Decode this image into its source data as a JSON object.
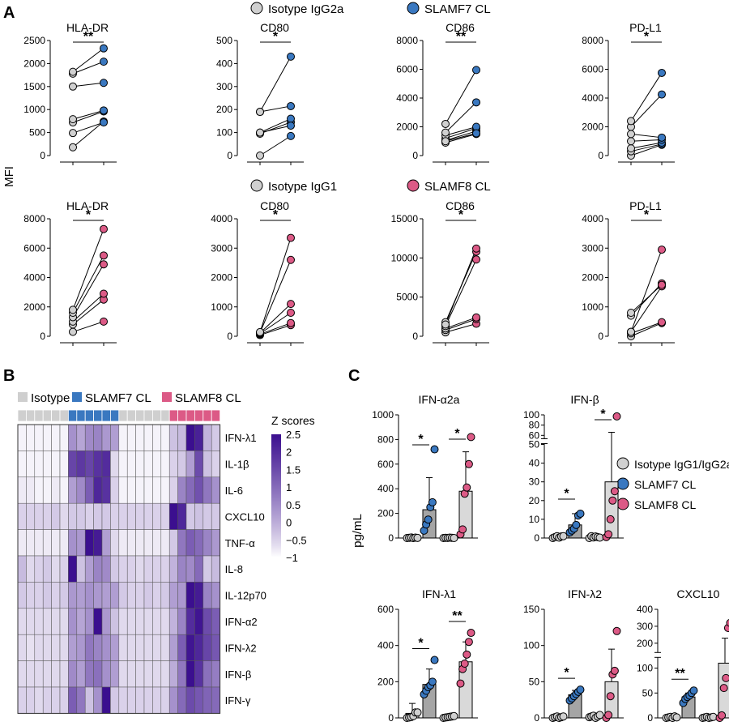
{
  "figure": {
    "panels": [
      {
        "letter": "A"
      },
      {
        "letter": "B"
      },
      {
        "letter": "C"
      }
    ],
    "colors": {
      "isotype": "#d0d0d0",
      "slamf7": "#3a78c0",
      "slamf8": "#dc5a86",
      "bar_slamf7": "#a5a5a5",
      "bar_isotype_slamf8": "#d9d9d9",
      "heat_high": "#3b0f8f"
    }
  },
  "panel_a": {
    "ylabel": "MFI",
    "legend_top": [
      {
        "label": "Isotype IgG2a",
        "color": "#d0d0d0"
      },
      {
        "label": "SLAMF7 CL",
        "color": "#3a78c0"
      }
    ],
    "legend_bottom": [
      {
        "label": "Isotype IgG1",
        "color": "#d0d0d0"
      },
      {
        "label": "SLAMF8 CL",
        "color": "#dc5a86"
      }
    ]
  },
  "panel_b": {
    "legend": [
      {
        "label": "Isotype",
        "color": "#cfcfcf"
      },
      {
        "label": "SLAMF7 CL",
        "color": "#3a78c0"
      },
      {
        "label": "SLAMF8 CL",
        "color": "#dc5a86"
      }
    ],
    "colorbar_title": "Z scores"
  },
  "panel_c": {
    "ylabel": "pg/mL",
    "legend": [
      {
        "label": "Isotype IgG1/IgG2a",
        "color": "#d0d0d0"
      },
      {
        "label": "SLAMF7 CL",
        "color": "#3a78c0"
      },
      {
        "label": "SLAMF8 CL",
        "color": "#dc5a86"
      }
    ]
  },
  "chart_data": [
    {
      "id": "a1",
      "type": "scatter",
      "subtype": "paired",
      "title": "HLA-DR",
      "significance": "**",
      "ylim": [
        0,
        2500
      ],
      "yticks": [
        0,
        500,
        1000,
        1500,
        2000,
        2500
      ],
      "pair_labels": [
        "Isotype IgG2a",
        "SLAMF7 CL"
      ],
      "pairs": [
        [
          180,
          740
        ],
        [
          490,
          720
        ],
        [
          720,
          960
        ],
        [
          790,
          980
        ],
        [
          1500,
          1580
        ],
        [
          1780,
          2040
        ],
        [
          1820,
          2330
        ]
      ]
    },
    {
      "id": "a2",
      "type": "scatter",
      "subtype": "paired",
      "title": "CD80",
      "significance": "*",
      "ylim": [
        0,
        500
      ],
      "yticks": [
        0,
        100,
        200,
        300,
        400,
        500
      ],
      "pair_labels": [
        "Isotype IgG2a",
        "SLAMF7 CL"
      ],
      "pairs": [
        [
          0,
          85
        ],
        [
          95,
          145
        ],
        [
          100,
          160
        ],
        [
          100,
          130
        ],
        [
          190,
          215
        ],
        [
          190,
          430
        ]
      ]
    },
    {
      "id": "a3",
      "type": "scatter",
      "subtype": "paired",
      "title": "CD86",
      "significance": "**",
      "ylim": [
        0,
        8000
      ],
      "yticks": [
        0,
        2000,
        4000,
        6000,
        8000
      ],
      "pair_labels": [
        "Isotype IgG2a",
        "SLAMF7 CL"
      ],
      "pairs": [
        [
          900,
          1500
        ],
        [
          1050,
          1700
        ],
        [
          1200,
          1900
        ],
        [
          1400,
          2000
        ],
        [
          1600,
          3700
        ],
        [
          2200,
          5950
        ],
        [
          1000,
          1550
        ]
      ]
    },
    {
      "id": "a4",
      "type": "scatter",
      "subtype": "paired",
      "title": "PD-L1",
      "significance": "*",
      "ylim": [
        0,
        8000
      ],
      "yticks": [
        0,
        2000,
        4000,
        6000,
        8000
      ],
      "pair_labels": [
        "Isotype IgG2a",
        "SLAMF7 CL"
      ],
      "pairs": [
        [
          0,
          750
        ],
        [
          300,
          800
        ],
        [
          500,
          900
        ],
        [
          1000,
          1100
        ],
        [
          1500,
          1250
        ],
        [
          2000,
          4250
        ],
        [
          2400,
          5750
        ]
      ]
    },
    {
      "id": "a5",
      "type": "scatter",
      "subtype": "paired",
      "title": "HLA-DR",
      "significance": "*",
      "ylim": [
        0,
        8000
      ],
      "yticks": [
        0,
        2000,
        4000,
        6000,
        8000
      ],
      "pair_labels": [
        "Isotype IgG1",
        "SLAMF8 CL"
      ],
      "pairs": [
        [
          300,
          1000
        ],
        [
          800,
          2500
        ],
        [
          1000,
          2900
        ],
        [
          1300,
          4900
        ],
        [
          1600,
          5500
        ],
        [
          1800,
          7300
        ]
      ]
    },
    {
      "id": "a6",
      "type": "scatter",
      "subtype": "paired",
      "title": "CD80",
      "significance": "*",
      "ylim": [
        0,
        4000
      ],
      "yticks": [
        0,
        1000,
        2000,
        3000,
        4000
      ],
      "pair_labels": [
        "Isotype IgG1",
        "SLAMF8 CL"
      ],
      "pairs": [
        [
          40,
          380
        ],
        [
          70,
          450
        ],
        [
          90,
          800
        ],
        [
          110,
          1100
        ],
        [
          120,
          2600
        ],
        [
          140,
          3350
        ]
      ]
    },
    {
      "id": "a7",
      "type": "scatter",
      "subtype": "paired",
      "title": "CD86",
      "significance": "*",
      "ylim": [
        0,
        15000
      ],
      "yticks": [
        0,
        5000,
        10000,
        15000
      ],
      "pair_labels": [
        "Isotype IgG1",
        "SLAMF8 CL"
      ],
      "pairs": [
        [
          500,
          1600
        ],
        [
          800,
          2200
        ],
        [
          1000,
          2400
        ],
        [
          1300,
          9800
        ],
        [
          1800,
          10800
        ],
        [
          1500,
          11200
        ]
      ]
    },
    {
      "id": "a8",
      "type": "scatter",
      "subtype": "paired",
      "title": "PD-L1",
      "significance": "*",
      "ylim": [
        0,
        4000
      ],
      "yticks": [
        0,
        1000,
        2000,
        3000,
        4000
      ],
      "pair_labels": [
        "Isotype IgG1",
        "SLAMF8 CL"
      ],
      "pairs": [
        [
          0,
          450
        ],
        [
          100,
          480
        ],
        [
          150,
          1700
        ],
        [
          700,
          1800
        ],
        [
          800,
          1750
        ],
        [
          150,
          2950
        ]
      ]
    },
    {
      "id": "heatmap",
      "type": "heatmap",
      "colorbar_label": "Z scores",
      "scale": [
        -1,
        2.5
      ],
      "scale_ticks": [
        2.5,
        2,
        1.5,
        1,
        0.5,
        0,
        -0.5,
        -1
      ],
      "scale_tick_labels": [
        "2.5",
        "2",
        "1.5",
        "1",
        "0.5",
        "0",
        "−0.5",
        "−1"
      ],
      "rows": [
        "IFN-λ1",
        "IL-1β",
        "IL-6",
        "CXCL10",
        "TNF-α",
        "IL-8",
        "IL-12p70",
        "IFN-α2",
        "IFN-λ2",
        "IFN-β",
        "IFN-γ"
      ],
      "column_groups": [
        {
          "label": "Isotype",
          "count": 6
        },
        {
          "label": "SLAMF7 CL",
          "count": 6
        },
        {
          "label": "Isotype",
          "count": 6
        },
        {
          "label": "SLAMF8 CL",
          "count": 6
        }
      ],
      "values": [
        [
          -0.9,
          -0.9,
          -0.9,
          -0.9,
          -0.9,
          -0.9,
          0.4,
          0.1,
          0.5,
          0.6,
          0.3,
          0.2,
          -0.9,
          -0.9,
          -0.9,
          -0.9,
          -0.9,
          -0.9,
          -0.3,
          -0.2,
          2.5,
          2.2,
          -0.1,
          -0.4
        ],
        [
          -0.9,
          -0.9,
          -0.9,
          -0.9,
          -0.9,
          -0.9,
          1.6,
          1.8,
          1.6,
          1.9,
          2.0,
          -0.6,
          -0.9,
          -0.9,
          -0.9,
          -0.9,
          -0.9,
          -0.9,
          -0.5,
          -0.4,
          0.2,
          1.5,
          -0.3,
          -0.5
        ],
        [
          -0.8,
          -0.8,
          -0.9,
          -0.9,
          -0.8,
          -0.9,
          0.2,
          0.5,
          1.2,
          2.1,
          1.9,
          -0.5,
          -0.9,
          -0.9,
          -0.9,
          -0.9,
          -0.9,
          -0.9,
          -0.5,
          0.6,
          1.0,
          1.4,
          0.8,
          0.4
        ],
        [
          -0.5,
          -0.5,
          -0.5,
          -0.5,
          -0.4,
          -0.6,
          -0.4,
          -0.4,
          -0.5,
          -0.4,
          -0.4,
          -0.5,
          -0.5,
          -0.5,
          -0.5,
          -0.5,
          -0.5,
          -0.5,
          2.5,
          2.1,
          -0.4,
          -0.3,
          -0.4,
          -0.4
        ],
        [
          -0.8,
          -0.8,
          -0.8,
          -0.8,
          -0.8,
          -0.8,
          0.4,
          0.3,
          2.5,
          2.3,
          0.2,
          -0.6,
          -0.8,
          -0.8,
          -0.8,
          -0.8,
          -0.8,
          -0.8,
          -0.4,
          0.8,
          1.2,
          1.0,
          0.6,
          0.3
        ],
        [
          -0.2,
          -0.6,
          -0.5,
          -0.4,
          -0.6,
          -0.5,
          2.5,
          -0.3,
          0.2,
          0.6,
          0.5,
          -0.4,
          -0.5,
          -0.5,
          -0.6,
          -0.5,
          -0.5,
          -0.5,
          -0.1,
          0.6,
          0.5,
          1.0,
          -0.4,
          -0.2
        ],
        [
          -0.4,
          -0.5,
          -0.5,
          -0.4,
          -0.5,
          -0.4,
          0.3,
          0.2,
          0.4,
          0.3,
          0.2,
          0.2,
          -0.4,
          -0.5,
          -0.5,
          -0.4,
          -0.5,
          -0.4,
          0.2,
          0.3,
          2.5,
          2.3,
          0.6,
          0.4
        ],
        [
          -0.6,
          -0.6,
          -0.6,
          -0.6,
          -0.6,
          -0.6,
          0.4,
          0.1,
          0.4,
          2.5,
          0.3,
          -0.3,
          -0.6,
          -0.6,
          -0.6,
          -0.6,
          -0.6,
          -0.6,
          -0.1,
          0.6,
          2.0,
          2.4,
          1.5,
          1.2
        ],
        [
          -0.6,
          -0.7,
          -0.6,
          -0.6,
          -0.6,
          -0.6,
          0.2,
          0.3,
          0.8,
          0.6,
          0.4,
          0.2,
          -0.6,
          -0.6,
          -0.6,
          -0.6,
          -0.6,
          -0.6,
          0.2,
          1.2,
          2.4,
          2.1,
          1.6,
          1.3
        ],
        [
          -0.6,
          -0.6,
          -0.6,
          -0.6,
          -0.6,
          -0.6,
          0.5,
          0.2,
          0.8,
          0.9,
          0.4,
          0.2,
          -0.6,
          -0.6,
          -0.6,
          -0.6,
          -0.6,
          -0.6,
          0.0,
          0.8,
          2.5,
          1.9,
          0.9,
          0.7
        ],
        [
          -0.5,
          -0.5,
          -0.6,
          -0.5,
          -0.5,
          -0.5,
          1.2,
          0.8,
          -0.3,
          0.4,
          2.5,
          -0.4,
          -0.5,
          -0.5,
          -0.5,
          -0.5,
          -0.5,
          -0.5,
          0.4,
          1.0,
          1.5,
          1.3,
          1.1,
          1.0
        ]
      ]
    },
    {
      "id": "c1",
      "type": "bar",
      "title": "IFN-α2a",
      "ylabel": "pg/mL",
      "ylim": [
        0,
        1000
      ],
      "yticks": [
        0,
        200,
        400,
        600,
        800,
        1000
      ],
      "categories": [
        "Isotype IgG2a",
        "SLAMF7 CL",
        "Isotype IgG1",
        "SLAMF8 CL"
      ],
      "means": [
        2,
        230,
        2,
        380
      ],
      "errors": [
        3,
        260,
        3,
        320
      ],
      "points": [
        [
          0,
          2,
          4,
          0,
          3,
          1
        ],
        [
          60,
          110,
          150,
          250,
          290,
          720
        ],
        [
          0,
          2,
          1,
          3,
          2,
          0
        ],
        [
          30,
          70,
          360,
          410,
          600,
          820
        ]
      ],
      "significance": [
        {
          "between": [
            0,
            1
          ],
          "label": "*"
        },
        {
          "between": [
            2,
            3
          ],
          "label": "*"
        }
      ]
    },
    {
      "id": "c2",
      "type": "bar",
      "title": "IFN-β",
      "ylabel": "pg/mL",
      "broken_axis": true,
      "ylim": [
        0,
        100
      ],
      "yticks": [
        0,
        10,
        20,
        30,
        40,
        50,
        60,
        80,
        100
      ],
      "categories": [
        "Isotype IgG2a",
        "SLAMF7 CL",
        "Isotype IgG1",
        "SLAMF8 CL"
      ],
      "means": [
        0.5,
        7,
        0.5,
        30
      ],
      "errors": [
        0.6,
        6,
        0.6,
        36
      ],
      "points": [
        [
          0,
          0.5,
          1,
          0.2,
          0.8,
          1
        ],
        [
          3,
          4,
          5,
          7,
          12,
          13
        ],
        [
          0,
          1,
          0.3,
          0.8,
          0.5,
          0.2
        ],
        [
          0.5,
          2,
          10,
          20,
          25,
          97
        ]
      ],
      "significance": [
        {
          "between": [
            0,
            1
          ],
          "label": "*"
        },
        {
          "between": [
            2,
            3
          ],
          "label": "*"
        }
      ]
    },
    {
      "id": "c3",
      "type": "bar",
      "title": "IFN-λ1",
      "ylabel": "pg/mL",
      "ylim": [
        0,
        600
      ],
      "yticks": [
        0,
        200,
        400,
        600
      ],
      "categories": [
        "Isotype IgG2a",
        "SLAMF7 CL",
        "Isotype IgG1",
        "SLAMF8 CL"
      ],
      "means": [
        25,
        185,
        5,
        310
      ],
      "errors": [
        55,
        85,
        4,
        110
      ],
      "points": [
        [
          0,
          2,
          5,
          10,
          30,
          30
        ],
        [
          130,
          150,
          170,
          180,
          200,
          320
        ],
        [
          0,
          2,
          4,
          6,
          8,
          10
        ],
        [
          190,
          270,
          300,
          350,
          420,
          470
        ]
      ],
      "significance": [
        {
          "between": [
            0,
            1
          ],
          "label": "*"
        },
        {
          "between": [
            2,
            3
          ],
          "label": "**"
        }
      ]
    },
    {
      "id": "c4",
      "type": "bar",
      "title": "IFN-λ2",
      "ylabel": "pg/mL",
      "ylim": [
        0,
        150
      ],
      "yticks": [
        0,
        50,
        100,
        150
      ],
      "categories": [
        "Isotype IgG2a",
        "SLAMF7 CL",
        "Isotype IgG1",
        "SLAMF8 CL"
      ],
      "means": [
        1,
        32,
        2,
        50
      ],
      "errors": [
        1,
        6,
        1,
        45
      ],
      "points": [
        [
          0,
          1,
          2,
          0,
          1,
          2
        ],
        [
          24,
          27,
          30,
          33,
          36,
          39
        ],
        [
          1,
          2,
          3,
          0,
          2,
          4
        ],
        [
          0,
          4,
          30,
          60,
          65,
          120
        ]
      ],
      "significance": [
        {
          "between": [
            0,
            1
          ],
          "label": "*"
        }
      ]
    },
    {
      "id": "c5",
      "type": "bar",
      "title": "CXCL10",
      "ylabel": "pg/mL",
      "broken_axis": true,
      "ylim": [
        0,
        400
      ],
      "yticks": [
        0,
        50,
        100,
        200,
        300,
        400
      ],
      "categories": [
        "Isotype IgG2a",
        "SLAMF7 CL",
        "Isotype IgG1",
        "SLAMF8 CL"
      ],
      "means": [
        1,
        42,
        1,
        110
      ],
      "errors": [
        2,
        8,
        2,
        120
      ],
      "points": [
        [
          0,
          1,
          2,
          0,
          3,
          1
        ],
        [
          30,
          38,
          42,
          45,
          50,
          55
        ],
        [
          0,
          1,
          2,
          0,
          1,
          2
        ],
        [
          0,
          5,
          60,
          80,
          290,
          320
        ]
      ],
      "significance": [
        {
          "between": [
            0,
            1
          ],
          "label": "**"
        }
      ]
    }
  ]
}
